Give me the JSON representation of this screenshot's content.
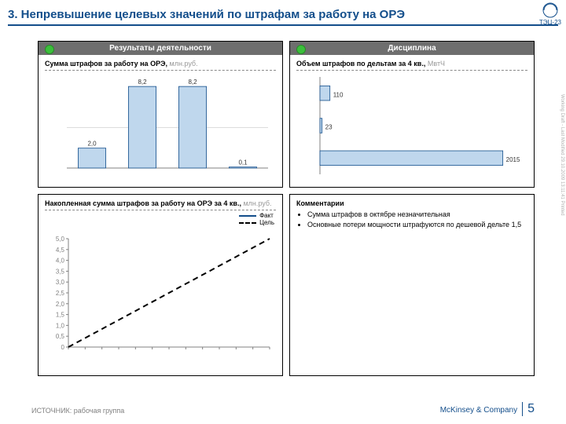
{
  "title": "3. Непревышение целевых значений по штрафам за работу на ОРЭ",
  "logo_label": "ТЭЦ-23",
  "side_text": "Working Draft - Last Modified 29.10.2009 13:11:41   Printed",
  "footer_source": "ИСТОЧНИК: рабочая группа",
  "footer_company": "McKinsey & Company",
  "page_number": "5",
  "panel_results": {
    "header": "Результаты деятельности",
    "chart": {
      "title": "Сумма штрафов за работу на ОРЭ,",
      "unit": "млн.руб.",
      "type": "bar",
      "categories": [
        "",
        "",
        "",
        ""
      ],
      "values": [
        2.0,
        8.2,
        8.2,
        0.1
      ],
      "labels": [
        "2,0",
        "8,2",
        "8,2",
        "0,1"
      ],
      "max": 9,
      "bar_color": "#bfd7ed",
      "bar_border": "#134e8b"
    }
  },
  "panel_discipline": {
    "header": "Дисциплина",
    "chart": {
      "title": "Объем штрафов по дельтам за 4 кв.,",
      "unit": "МвтЧ",
      "type": "hbar",
      "categories": [
        "",
        "",
        ""
      ],
      "values": [
        110,
        23,
        2015
      ],
      "labels": [
        "110",
        "23",
        "2015"
      ],
      "max": 2200,
      "bar_color": "#bfd7ed",
      "bar_border": "#134e8b"
    }
  },
  "panel_accum": {
    "chart": {
      "title": "Накопленная сумма штрафов за работу на ОРЭ за 4 кв.,",
      "unit": "млн.руб.",
      "type": "line",
      "legend": {
        "fact": "Факт",
        "target": "Цель"
      },
      "y_ticks": [
        "0",
        "0,5",
        "1,0",
        "1,5",
        "2,0",
        "2,5",
        "3,0",
        "3,5",
        "4,0",
        "4,5",
        "5,0"
      ],
      "y_max": 5.0,
      "x_count": 13,
      "fact_color": "#134e8b",
      "target_color": "#000000",
      "target_points": [
        [
          0,
          0
        ],
        [
          12,
          5.0
        ]
      ]
    }
  },
  "panel_comments": {
    "title": "Комментарии",
    "items": [
      "Сумма штрафов в октябре незначительная",
      "Основные потери мощности штрафуются по дешевой дельте 1,5"
    ]
  }
}
